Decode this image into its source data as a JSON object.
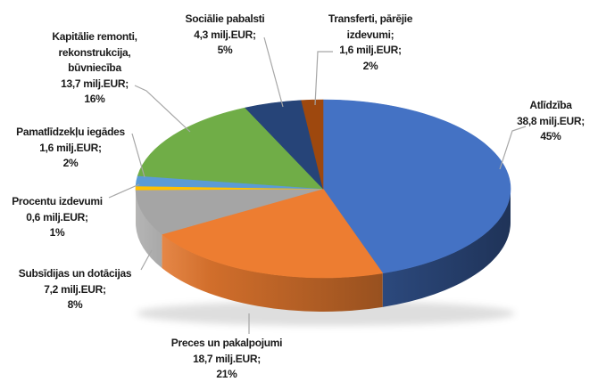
{
  "page": {
    "background": "#FFFFFF"
  },
  "chart_data": {
    "type": "pie",
    "style": "3d",
    "direction": "clockwise",
    "start_angle_deg": 0,
    "value_unit": "milj.EUR",
    "legend_position": "none",
    "grid": false,
    "label_text_color": "#1A1A1A",
    "leader_line_color": "#A6A6A6",
    "segments": [
      {
        "key": "atlidziba",
        "name": "Atlīdzība",
        "value": 38.8,
        "value_label": "38,8 milj.EUR;",
        "pct": 45,
        "pct_label": "45%",
        "color": "#4472C4",
        "label_lines": [
          "Atlīdzība",
          "38,8 milj.EUR;",
          "45%"
        ]
      },
      {
        "key": "preces",
        "name": "Preces un pakalpojumi",
        "value": 18.7,
        "value_label": "18,7 milj.EUR;",
        "pct": 21,
        "pct_label": "21%",
        "color": "#ED7D31",
        "label_lines": [
          "Preces un pakalpojumi",
          "18,7 milj.EUR;",
          "21%"
        ]
      },
      {
        "key": "subsidijas",
        "name": "Subsīdijas un dotācijas",
        "value": 7.2,
        "value_label": "7,2 milj.EUR;",
        "pct": 8,
        "pct_label": "8%",
        "color": "#A5A5A5",
        "label_lines": [
          "Subsīdijas un dotācijas",
          "7,2 milj.EUR;",
          "8%"
        ]
      },
      {
        "key": "procentu",
        "name": "Procentu izdevumi",
        "value": 0.6,
        "value_label": "0,6 milj.EUR;",
        "pct": 1,
        "pct_label": "1%",
        "color": "#FFC000",
        "label_lines": [
          "Procentu izdevumi",
          "0,6 milj.EUR;",
          "1%"
        ]
      },
      {
        "key": "pamatlidzeklu",
        "name": "Pamatlīdzekļu iegādes",
        "value": 1.6,
        "value_label": "1,6 milj.EUR;",
        "pct": 2,
        "pct_label": "2%",
        "color": "#5B9BD5",
        "label_lines": [
          "Pamatlīdzekļu iegādes",
          "1,6 milj.EUR;",
          "2%"
        ]
      },
      {
        "key": "kapitalie",
        "name": "Kapitālie remonti, rekonstrukcija, būvniecība",
        "value": 13.7,
        "value_label": "13,7 milj.EUR;",
        "pct": 16,
        "pct_label": "16%",
        "color": "#70AD47",
        "label_lines": [
          "Kapitālie remonti,",
          "rekonstrukcija,",
          "būvniecība",
          "13,7 milj.EUR;",
          "16%"
        ]
      },
      {
        "key": "socialie",
        "name": "Sociālie pabalsti",
        "value": 4.3,
        "value_label": "4,3 milj.EUR;",
        "pct": 5,
        "pct_label": "5%",
        "color": "#264478",
        "label_lines": [
          "Sociālie pabalsti",
          "4,3 milj.EUR;",
          "5%"
        ]
      },
      {
        "key": "transferti",
        "name": "Transferti, pārējie izdevumi",
        "value": 1.6,
        "value_label": "1,6 milj.EUR;",
        "pct": 2,
        "pct_label": "2%",
        "color": "#9E480E",
        "label_lines": [
          "Transferti, pārējie",
          "izdevumi;",
          "1,6 milj.EUR;",
          "2%"
        ]
      }
    ]
  }
}
